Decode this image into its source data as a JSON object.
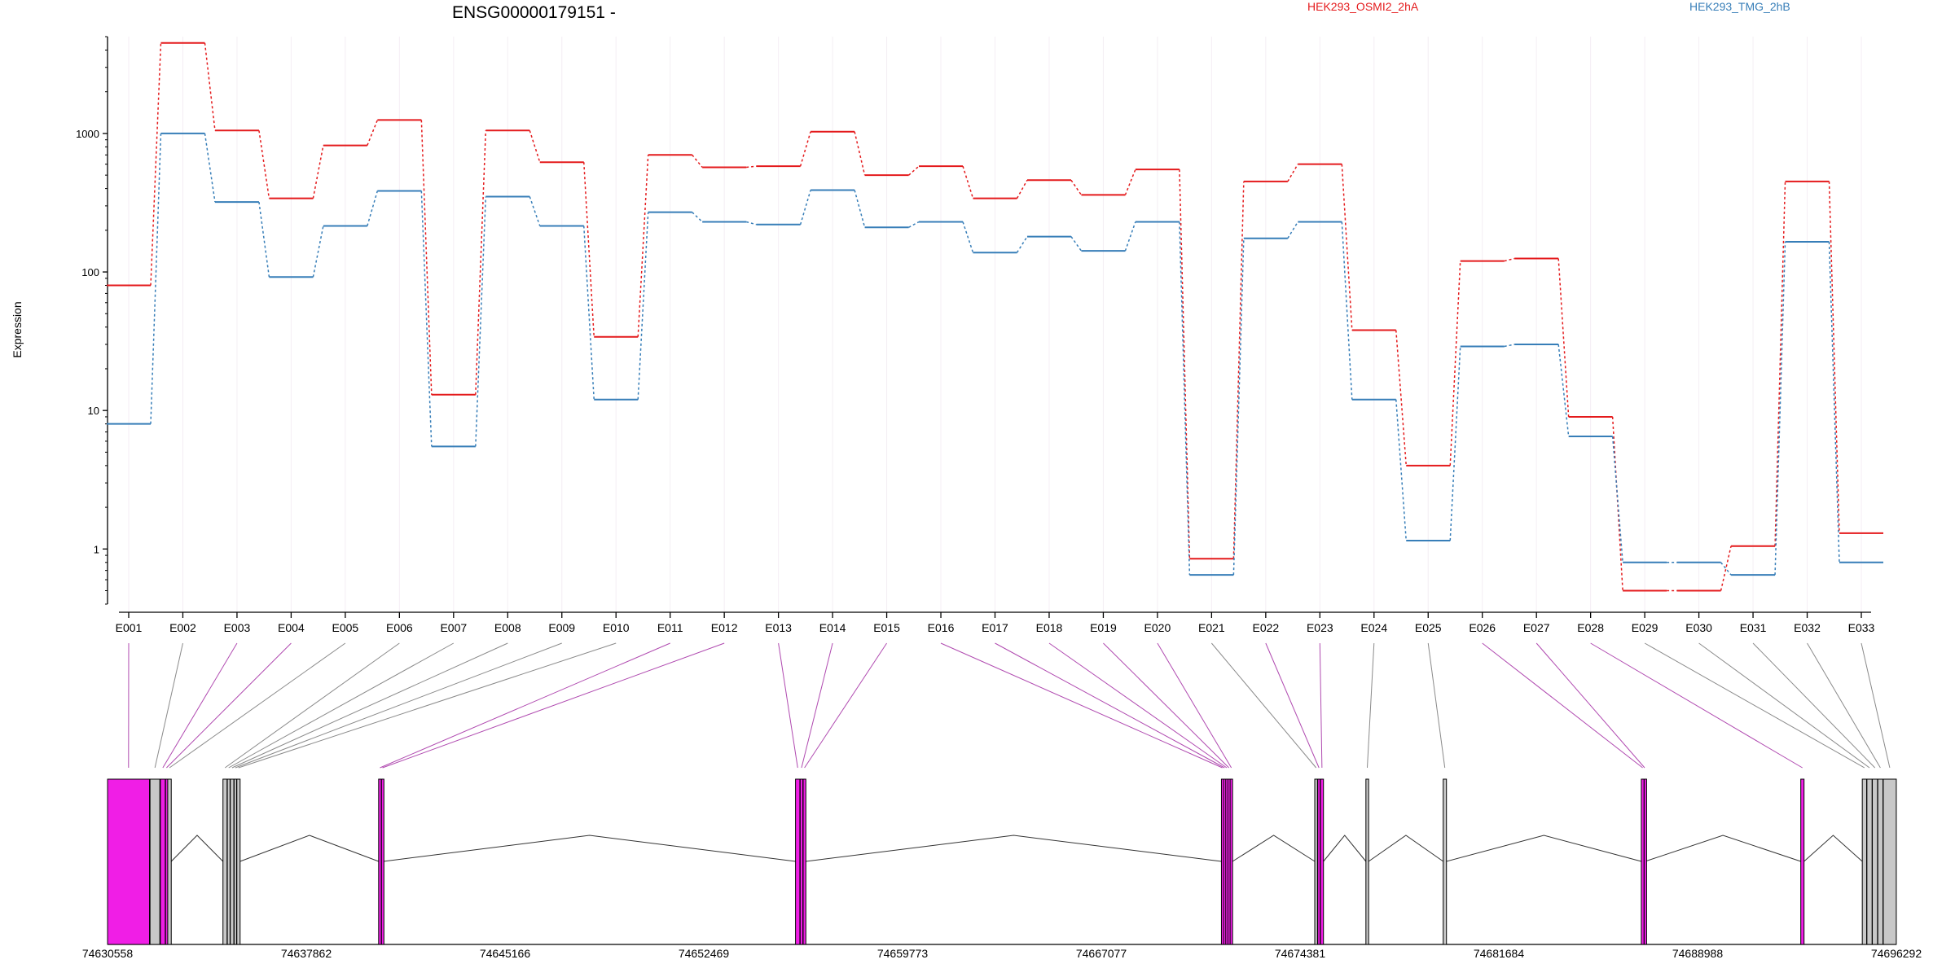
{
  "title": "ENSG00000179151 -",
  "colors": {
    "series_a": "#e41a1c",
    "series_b": "#377eb8",
    "differential_exon": "#f01ee6",
    "constitutive_exon": "#c8c8c8",
    "link_differential": "#b04ab0",
    "link_normal": "#8a8a8a",
    "grid": "#f4eef4",
    "axis": "#000000"
  },
  "chart_data": {
    "type": "line",
    "title": "ENSG00000179151 -",
    "ylabel": "Expression",
    "xlabel": "",
    "yscale": "log",
    "ylim": [
      0.4,
      5000
    ],
    "yticks": [
      1,
      10,
      100,
      1000
    ],
    "ytick_labels": [
      "1",
      "10",
      "100",
      "1000"
    ],
    "grid": "vertical",
    "legend_position": "top",
    "categories": [
      "E001",
      "E002",
      "E003",
      "E004",
      "E005",
      "E006",
      "E007",
      "E008",
      "E009",
      "E010",
      "E011",
      "E012",
      "E013",
      "E014",
      "E015",
      "E016",
      "E017",
      "E018",
      "E019",
      "E020",
      "E021",
      "E022",
      "E023",
      "E024",
      "E025",
      "E026",
      "E027",
      "E028",
      "E029",
      "E030",
      "E031",
      "E032",
      "E033"
    ],
    "series": [
      {
        "name": "HEK293_OSMI2_2hA",
        "color": "#e41a1c",
        "values": [
          80,
          4500,
          1050,
          340,
          820,
          1250,
          13,
          1050,
          620,
          34,
          700,
          570,
          580,
          1030,
          500,
          580,
          340,
          460,
          360,
          550,
          0.85,
          450,
          600,
          38,
          4,
          120,
          125,
          9,
          0.5,
          0.5,
          1.05,
          450,
          1.3
        ]
      },
      {
        "name": "HEK293_TMG_2hB",
        "color": "#377eb8",
        "values": [
          8,
          1000,
          320,
          92,
          215,
          385,
          5.5,
          350,
          215,
          12,
          270,
          230,
          220,
          390,
          210,
          230,
          138,
          180,
          142,
          230,
          0.65,
          175,
          230,
          12,
          1.15,
          29,
          30,
          6.5,
          0.8,
          0.8,
          0.65,
          165,
          0.8
        ]
      }
    ],
    "gene_model": {
      "coordinate_labels": [
        "74630558",
        "74637862",
        "74645166",
        "74652469",
        "74659773",
        "74667077",
        "74674381",
        "74681684",
        "74688988",
        "74696292"
      ],
      "coord_start": 74630558,
      "coord_end": 74696292,
      "exons": [
        {
          "id": "E001",
          "start": 74630560,
          "end": 74632100,
          "differential": true
        },
        {
          "id": "E002",
          "start": 74632120,
          "end": 74632480,
          "differential": false
        },
        {
          "id": "E003",
          "start": 74632500,
          "end": 74632680,
          "differential": true
        },
        {
          "id": "E004",
          "start": 74632690,
          "end": 74632760,
          "differential": true
        },
        {
          "id": "E005",
          "start": 74632770,
          "end": 74632900,
          "differential": false
        },
        {
          "id": "E006",
          "start": 74634800,
          "end": 74634950,
          "differential": false
        },
        {
          "id": "E007",
          "start": 74634960,
          "end": 74635060,
          "differential": false
        },
        {
          "id": "E008",
          "start": 74635070,
          "end": 74635200,
          "differential": false
        },
        {
          "id": "E009",
          "start": 74635210,
          "end": 74635300,
          "differential": false
        },
        {
          "id": "E010",
          "start": 74635310,
          "end": 74635430,
          "differential": false
        },
        {
          "id": "E011",
          "start": 74640520,
          "end": 74640620,
          "differential": true
        },
        {
          "id": "E012",
          "start": 74640625,
          "end": 74640700,
          "differential": true
        },
        {
          "id": "E013",
          "start": 74655840,
          "end": 74656000,
          "differential": true
        },
        {
          "id": "E014",
          "start": 74656010,
          "end": 74656110,
          "differential": true
        },
        {
          "id": "E015",
          "start": 74656120,
          "end": 74656220,
          "differential": true
        },
        {
          "id": "E016",
          "start": 74671490,
          "end": 74671560,
          "differential": true
        },
        {
          "id": "E017",
          "start": 74671570,
          "end": 74671640,
          "differential": true
        },
        {
          "id": "E018",
          "start": 74671650,
          "end": 74671720,
          "differential": true
        },
        {
          "id": "E019",
          "start": 74671730,
          "end": 74671800,
          "differential": true
        },
        {
          "id": "E020",
          "start": 74671810,
          "end": 74671900,
          "differential": true
        },
        {
          "id": "E021",
          "start": 74674920,
          "end": 74675020,
          "differential": false
        },
        {
          "id": "E022",
          "start": 74675030,
          "end": 74675120,
          "differential": true
        },
        {
          "id": "E023",
          "start": 74675130,
          "end": 74675240,
          "differential": true
        },
        {
          "id": "E024",
          "start": 74676800,
          "end": 74676900,
          "differential": false
        },
        {
          "id": "E025",
          "start": 74679640,
          "end": 74679760,
          "differential": false
        },
        {
          "id": "E026",
          "start": 74686920,
          "end": 74687020,
          "differential": true
        },
        {
          "id": "E027",
          "start": 74687025,
          "end": 74687060,
          "differential": true
        },
        {
          "id": "E028",
          "start": 74692780,
          "end": 74692900,
          "differential": true
        },
        {
          "id": "E029",
          "start": 74695040,
          "end": 74695200,
          "differential": false
        },
        {
          "id": "E030",
          "start": 74695210,
          "end": 74695400,
          "differential": false
        },
        {
          "id": "E031",
          "start": 74695410,
          "end": 74695600,
          "differential": false
        },
        {
          "id": "E032",
          "start": 74695610,
          "end": 74695800,
          "differential": false
        },
        {
          "id": "E033",
          "start": 74695810,
          "end": 74696290,
          "differential": false
        }
      ]
    }
  }
}
